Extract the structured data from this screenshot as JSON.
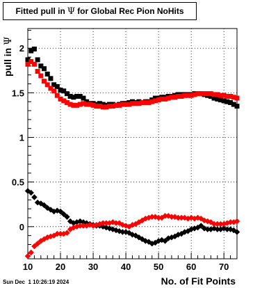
{
  "chart_data": {
    "type": "scatter",
    "title_prefix": "Fitted pull in",
    "title_symbol": "Ψ",
    "title_suffix": "for Global Rec Pion NoHits",
    "ylabel_prefix": "pull in",
    "ylabel_symbol": "Ψ",
    "xlabel": "No. of Fit Points",
    "xlim": [
      10,
      74
    ],
    "ylim": [
      -0.36,
      2.22
    ],
    "xticks": [
      10,
      20,
      30,
      40,
      50,
      60,
      70
    ],
    "xtick_labels": [
      "10",
      "20",
      "30",
      "40",
      "50",
      "60",
      "70"
    ],
    "yticks": [
      0,
      0.5,
      1,
      1.5,
      2
    ],
    "ytick_labels": [
      "0",
      "0.5",
      "1",
      "1.5",
      "2"
    ],
    "grid": true,
    "series": [
      {
        "color": "#000000",
        "points": [
          [
            10,
            1.87
          ],
          [
            11,
            1.97
          ],
          [
            12,
            1.99
          ],
          [
            13,
            1.87
          ],
          [
            14,
            1.8
          ],
          [
            15,
            1.77
          ],
          [
            16,
            1.71
          ],
          [
            17,
            1.66
          ],
          [
            18,
            1.59
          ],
          [
            19,
            1.57
          ],
          [
            20,
            1.53
          ],
          [
            21,
            1.52
          ],
          [
            22,
            1.49
          ],
          [
            23,
            1.46
          ],
          [
            24,
            1.45
          ],
          [
            25,
            1.46
          ],
          [
            26,
            1.46
          ],
          [
            27,
            1.44
          ],
          [
            28,
            1.4
          ],
          [
            29,
            1.38
          ],
          [
            30,
            1.38
          ],
          [
            31,
            1.37
          ],
          [
            32,
            1.38
          ],
          [
            33,
            1.37
          ],
          [
            34,
            1.36
          ],
          [
            35,
            1.37
          ],
          [
            36,
            1.37
          ],
          [
            37,
            1.36
          ],
          [
            38,
            1.37
          ],
          [
            39,
            1.38
          ],
          [
            40,
            1.38
          ],
          [
            41,
            1.39
          ],
          [
            42,
            1.4
          ],
          [
            43,
            1.39
          ],
          [
            44,
            1.4
          ],
          [
            45,
            1.39
          ],
          [
            46,
            1.4
          ],
          [
            47,
            1.4
          ],
          [
            48,
            1.42
          ],
          [
            49,
            1.44
          ],
          [
            50,
            1.44
          ],
          [
            51,
            1.45
          ],
          [
            52,
            1.45
          ],
          [
            53,
            1.46
          ],
          [
            54,
            1.46
          ],
          [
            55,
            1.47
          ],
          [
            56,
            1.48
          ],
          [
            57,
            1.48
          ],
          [
            58,
            1.48
          ],
          [
            59,
            1.48
          ],
          [
            60,
            1.48
          ],
          [
            61,
            1.49
          ],
          [
            62,
            1.49
          ],
          [
            63,
            1.49
          ],
          [
            64,
            1.48
          ],
          [
            65,
            1.47
          ],
          [
            66,
            1.46
          ],
          [
            67,
            1.44
          ],
          [
            68,
            1.43
          ],
          [
            69,
            1.42
          ],
          [
            70,
            1.41
          ],
          [
            71,
            1.4
          ],
          [
            72,
            1.39
          ],
          [
            73,
            1.37
          ],
          [
            74,
            1.35
          ]
        ]
      },
      {
        "color": "#ff0000",
        "points": [
          [
            10,
            1.82
          ],
          [
            11,
            1.85
          ],
          [
            12,
            1.82
          ],
          [
            13,
            1.74
          ],
          [
            14,
            1.69
          ],
          [
            15,
            1.63
          ],
          [
            16,
            1.59
          ],
          [
            17,
            1.55
          ],
          [
            18,
            1.52
          ],
          [
            19,
            1.47
          ],
          [
            20,
            1.43
          ],
          [
            21,
            1.41
          ],
          [
            22,
            1.39
          ],
          [
            23,
            1.37
          ],
          [
            24,
            1.36
          ],
          [
            25,
            1.36
          ],
          [
            26,
            1.37
          ],
          [
            27,
            1.38
          ],
          [
            28,
            1.37
          ],
          [
            29,
            1.37
          ],
          [
            30,
            1.36
          ],
          [
            31,
            1.35
          ],
          [
            32,
            1.35
          ],
          [
            33,
            1.34
          ],
          [
            34,
            1.34
          ],
          [
            35,
            1.35
          ],
          [
            36,
            1.35
          ],
          [
            37,
            1.36
          ],
          [
            38,
            1.36
          ],
          [
            39,
            1.37
          ],
          [
            40,
            1.37
          ],
          [
            41,
            1.37
          ],
          [
            42,
            1.38
          ],
          [
            43,
            1.38
          ],
          [
            44,
            1.38
          ],
          [
            45,
            1.39
          ],
          [
            46,
            1.39
          ],
          [
            47,
            1.39
          ],
          [
            48,
            1.4
          ],
          [
            49,
            1.41
          ],
          [
            50,
            1.42
          ],
          [
            51,
            1.43
          ],
          [
            52,
            1.43
          ],
          [
            53,
            1.44
          ],
          [
            54,
            1.45
          ],
          [
            55,
            1.45
          ],
          [
            56,
            1.46
          ],
          [
            57,
            1.46
          ],
          [
            58,
            1.47
          ],
          [
            59,
            1.47
          ],
          [
            60,
            1.47
          ],
          [
            61,
            1.48
          ],
          [
            62,
            1.49
          ],
          [
            63,
            1.49
          ],
          [
            64,
            1.49
          ],
          [
            65,
            1.49
          ],
          [
            66,
            1.49
          ],
          [
            67,
            1.48
          ],
          [
            68,
            1.48
          ],
          [
            69,
            1.47
          ],
          [
            70,
            1.47
          ],
          [
            71,
            1.46
          ],
          [
            72,
            1.46
          ],
          [
            73,
            1.45
          ],
          [
            74,
            1.44
          ]
        ]
      },
      {
        "color": "#000000",
        "points": [
          [
            10,
            0.4
          ],
          [
            11,
            0.38
          ],
          [
            12,
            0.33
          ],
          [
            13,
            0.27
          ],
          [
            14,
            0.26
          ],
          [
            15,
            0.24
          ],
          [
            16,
            0.21
          ],
          [
            17,
            0.19
          ],
          [
            18,
            0.17
          ],
          [
            19,
            0.18
          ],
          [
            20,
            0.17
          ],
          [
            21,
            0.14
          ],
          [
            22,
            0.11
          ],
          [
            23,
            0.06
          ],
          [
            24,
            0.04
          ],
          [
            25,
            0.05
          ],
          [
            26,
            0.06
          ],
          [
            27,
            0.05
          ],
          [
            28,
            0.04
          ],
          [
            29,
            0.03
          ],
          [
            30,
            0.02
          ],
          [
            31,
            0.01
          ],
          [
            32,
            0.01
          ],
          [
            33,
            0.0
          ],
          [
            34,
            -0.01
          ],
          [
            35,
            -0.02
          ],
          [
            36,
            -0.03
          ],
          [
            37,
            -0.04
          ],
          [
            38,
            -0.05
          ],
          [
            39,
            -0.06
          ],
          [
            40,
            -0.06
          ],
          [
            41,
            -0.07
          ],
          [
            42,
            -0.09
          ],
          [
            43,
            -0.1
          ],
          [
            44,
            -0.12
          ],
          [
            45,
            -0.14
          ],
          [
            46,
            -0.16
          ],
          [
            47,
            -0.17
          ],
          [
            48,
            -0.19
          ],
          [
            49,
            -0.18
          ],
          [
            50,
            -0.16
          ],
          [
            51,
            -0.15
          ],
          [
            52,
            -0.16
          ],
          [
            53,
            -0.13
          ],
          [
            54,
            -0.12
          ],
          [
            55,
            -0.11
          ],
          [
            56,
            -0.09
          ],
          [
            57,
            -0.08
          ],
          [
            58,
            -0.06
          ],
          [
            59,
            -0.05
          ],
          [
            60,
            -0.03
          ],
          [
            61,
            -0.02
          ],
          [
            62,
            -0.01
          ],
          [
            63,
            0.01
          ],
          [
            64,
            -0.02
          ],
          [
            65,
            -0.03
          ],
          [
            66,
            -0.03
          ],
          [
            67,
            -0.02
          ],
          [
            68,
            -0.03
          ],
          [
            69,
            -0.03
          ],
          [
            70,
            -0.02
          ],
          [
            71,
            -0.03
          ],
          [
            72,
            -0.03
          ],
          [
            73,
            -0.04
          ],
          [
            74,
            -0.06
          ]
        ]
      },
      {
        "color": "#ff0000",
        "points": [
          [
            10,
            -0.33
          ],
          [
            11,
            -0.29
          ],
          [
            12,
            -0.22
          ],
          [
            13,
            -0.19
          ],
          [
            14,
            -0.16
          ],
          [
            15,
            -0.14
          ],
          [
            16,
            -0.12
          ],
          [
            17,
            -0.11
          ],
          [
            18,
            -0.1
          ],
          [
            19,
            -0.08
          ],
          [
            20,
            -0.08
          ],
          [
            21,
            -0.08
          ],
          [
            22,
            -0.07
          ],
          [
            23,
            -0.03
          ],
          [
            24,
            -0.01
          ],
          [
            25,
            0.0
          ],
          [
            26,
            0.01
          ],
          [
            27,
            0.01
          ],
          [
            28,
            0.01
          ],
          [
            29,
            0.02
          ],
          [
            30,
            0.01
          ],
          [
            31,
            0.02
          ],
          [
            32,
            0.03
          ],
          [
            33,
            0.04
          ],
          [
            34,
            0.04
          ],
          [
            35,
            0.04
          ],
          [
            36,
            0.05
          ],
          [
            37,
            0.04
          ],
          [
            38,
            0.04
          ],
          [
            39,
            0.02
          ],
          [
            40,
            0.01
          ],
          [
            41,
            0.0
          ],
          [
            42,
            0.02
          ],
          [
            43,
            0.03
          ],
          [
            44,
            0.05
          ],
          [
            45,
            0.07
          ],
          [
            46,
            0.09
          ],
          [
            47,
            0.1
          ],
          [
            48,
            0.11
          ],
          [
            49,
            0.11
          ],
          [
            50,
            0.1
          ],
          [
            51,
            0.1
          ],
          [
            52,
            0.12
          ],
          [
            53,
            0.12
          ],
          [
            54,
            0.11
          ],
          [
            55,
            0.11
          ],
          [
            56,
            0.1
          ],
          [
            57,
            0.1
          ],
          [
            58,
            0.1
          ],
          [
            59,
            0.09
          ],
          [
            60,
            0.1
          ],
          [
            61,
            0.09
          ],
          [
            62,
            0.1
          ],
          [
            63,
            0.09
          ],
          [
            64,
            0.07
          ],
          [
            65,
            0.06
          ],
          [
            66,
            0.05
          ],
          [
            67,
            0.03
          ],
          [
            68,
            0.03
          ],
          [
            69,
            0.03
          ],
          [
            70,
            0.03
          ],
          [
            71,
            0.04
          ],
          [
            72,
            0.05
          ],
          [
            73,
            0.05
          ],
          [
            74,
            0.06
          ]
        ]
      }
    ]
  },
  "footer": {
    "datestamp": "Sun Dec  1 10:26:19 2024"
  }
}
